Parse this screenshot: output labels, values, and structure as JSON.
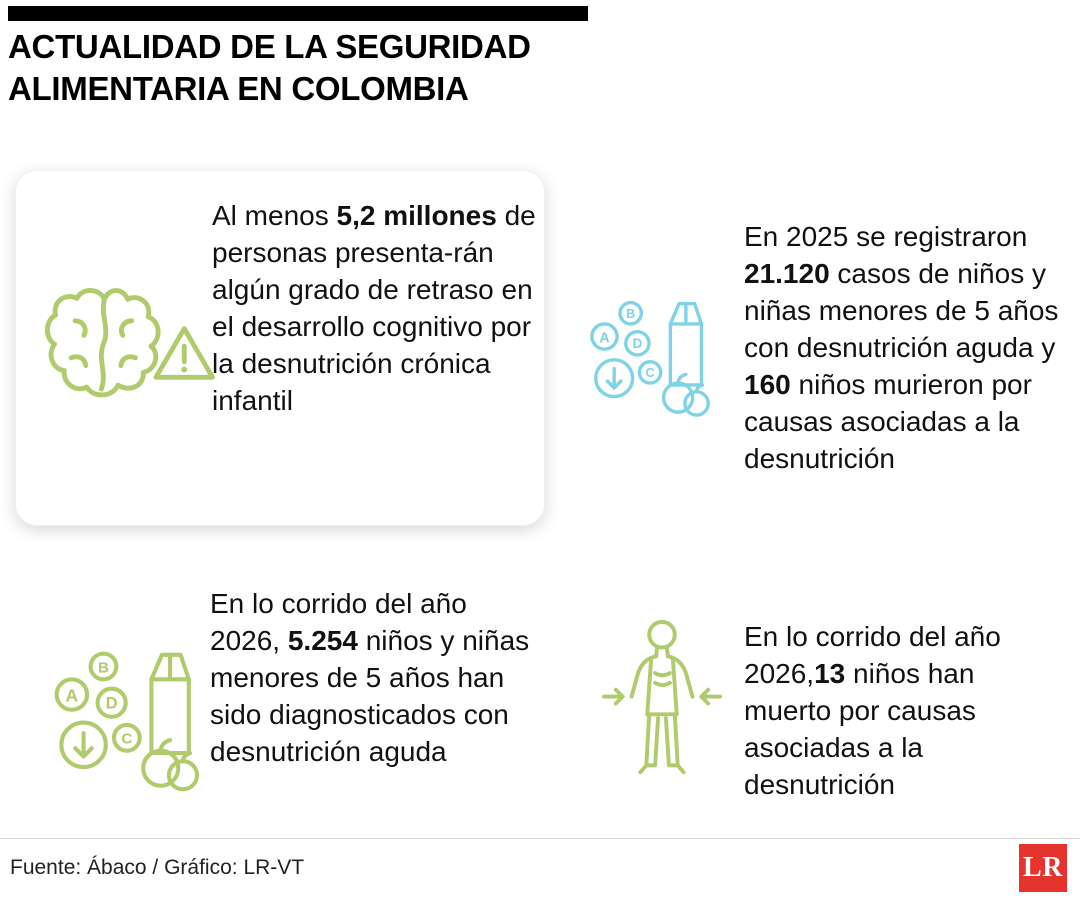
{
  "title": "ACTUALIDAD DE LA SEGURIDAD ALIMENTARIA EN COLOMBIA",
  "colors": {
    "green": "#afcb6b",
    "blue": "#7ed3e6",
    "red": "#e5332e",
    "bar": "#000000"
  },
  "icons": {
    "cognitive": "brain-warning-icon",
    "cases_2025": "nutrition-supplements-icon",
    "diagnosed_2026": "nutrition-supplements-icon",
    "deaths_2026": "malnourished-child-icon"
  },
  "stats": {
    "cognitive": {
      "segments": [
        {
          "text": "Al menos ",
          "bold": false
        },
        {
          "text": "5,2 millones",
          "bold": true
        },
        {
          "text": " de personas presenta-rán algún grado de retraso en el desarrollo cognitivo por la desnutrición crónica infantil",
          "bold": false
        }
      ]
    },
    "cases_2025": {
      "segments": [
        {
          "text": "En 2025 se registraron ",
          "bold": false
        },
        {
          "text": "21.120",
          "bold": true
        },
        {
          "text": " casos de niños y niñas menores de 5 años con desnutrición aguda y ",
          "bold": false
        },
        {
          "text": "160",
          "bold": true
        },
        {
          "text": " niños murieron por causas asociadas a la desnutrición",
          "bold": false
        }
      ]
    },
    "diagnosed_2026": {
      "segments": [
        {
          "text": "En lo corrido del año 2026, ",
          "bold": false
        },
        {
          "text": "5.254",
          "bold": true
        },
        {
          "text": " niños y niñas menores de 5 años han sido diagnosticados con desnutrición aguda",
          "bold": false
        }
      ]
    },
    "deaths_2026": {
      "segments": [
        {
          "text": "En lo corrido del año 2026,",
          "bold": false
        },
        {
          "text": "13",
          "bold": true
        },
        {
          "text": " niños han muerto por causas asociadas a la desnutrición",
          "bold": false
        }
      ]
    }
  },
  "footer": {
    "source": "Fuente: Ábaco / Gráfico: LR-VT",
    "logo": "LR"
  }
}
